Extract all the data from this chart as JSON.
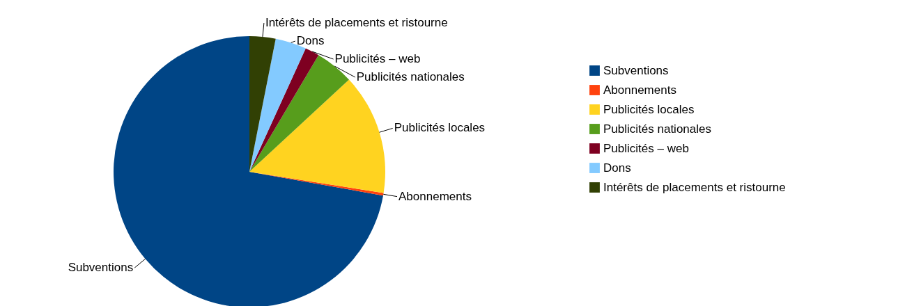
{
  "chart_data": {
    "type": "pie",
    "categories": [
      "Subventions",
      "Abonnements",
      "Publicités locales",
      "Publicités nationales",
      "Publicités – web",
      "Dons",
      "Intérêts de placements et ristourne"
    ],
    "values": [
      72.2,
      0.3,
      14.4,
      4.6,
      1.7,
      3.7,
      3.1
    ],
    "colors": [
      "#004586",
      "#ff420e",
      "#ffd320",
      "#579d1c",
      "#7e0021",
      "#83caff",
      "#314004"
    ],
    "legend": "right"
  }
}
